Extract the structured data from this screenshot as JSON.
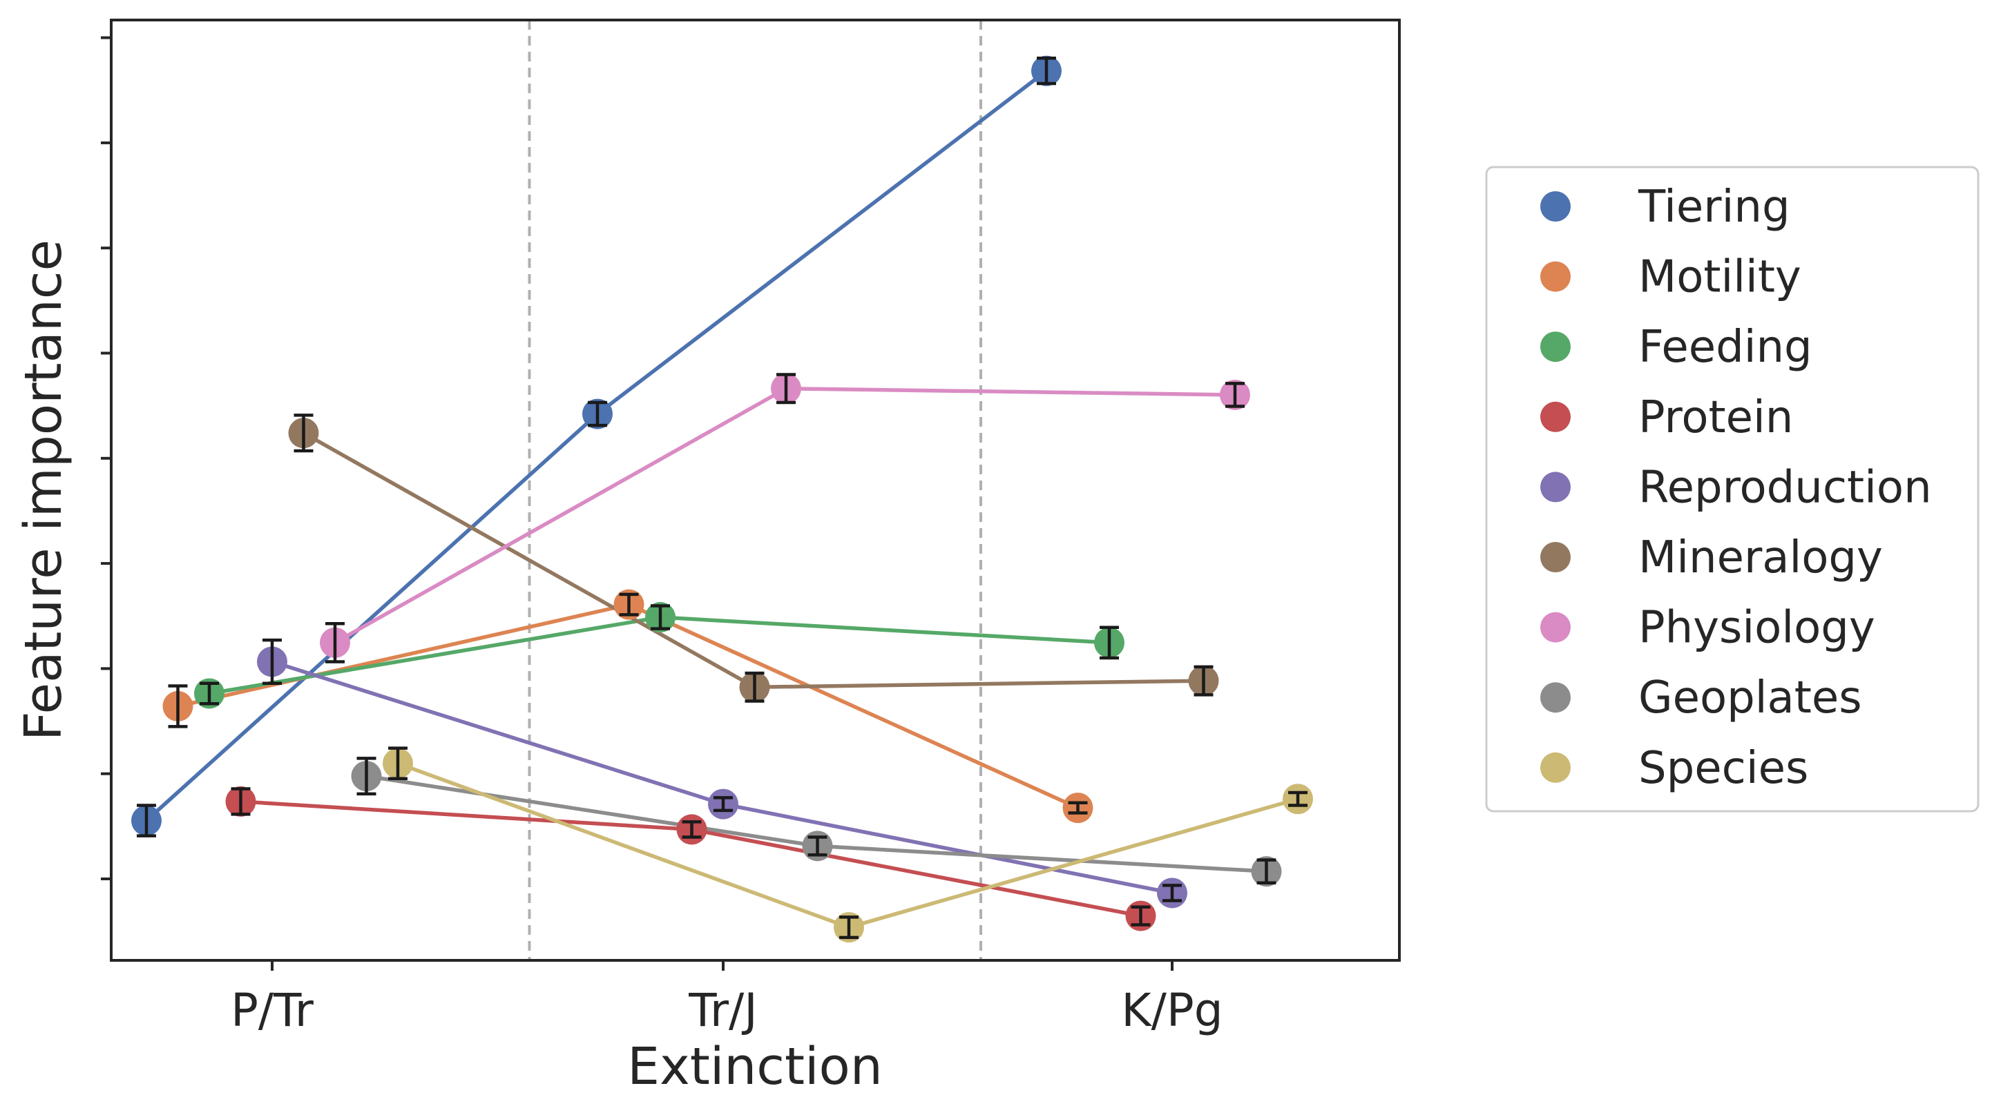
{
  "chart_data": {
    "type": "scatter",
    "xlabel": "Extinction",
    "ylabel": "Feature importance",
    "categories": [
      "P/Tr",
      "Tr/J",
      "K/Pg"
    ],
    "y_tick_count": 9,
    "y_tick_labels": "none",
    "grid": false,
    "legend_position": "outside-right",
    "vertical_separators": true,
    "series": [
      {
        "name": "Tiering",
        "color": "#4c72b0",
        "values": [
          0.17,
          0.49,
          0.76
        ],
        "errors": [
          0.012,
          0.009,
          0.01
        ]
      },
      {
        "name": "Motility",
        "color": "#dd8452",
        "values": [
          0.26,
          0.34,
          0.18
        ],
        "errors": [
          0.016,
          0.008,
          0.004
        ]
      },
      {
        "name": "Feeding",
        "color": "#55a868",
        "values": [
          0.27,
          0.33,
          0.31
        ],
        "errors": [
          0.008,
          0.009,
          0.012
        ]
      },
      {
        "name": "Protein",
        "color": "#c44e52",
        "values": [
          0.185,
          0.163,
          0.095
        ],
        "errors": [
          0.01,
          0.006,
          0.007
        ]
      },
      {
        "name": "Reproduction",
        "color": "#8172b3",
        "values": [
          0.295,
          0.183,
          0.113
        ],
        "errors": [
          0.017,
          0.005,
          0.006
        ]
      },
      {
        "name": "Mineralogy",
        "color": "#937860",
        "values": [
          0.475,
          0.275,
          0.28
        ],
        "errors": [
          0.014,
          0.011,
          0.011
        ]
      },
      {
        "name": "Physiology",
        "color": "#da8bc3",
        "values": [
          0.31,
          0.51,
          0.505
        ],
        "errors": [
          0.015,
          0.011,
          0.009
        ]
      },
      {
        "name": "Geoplates",
        "color": "#8c8c8c",
        "values": [
          0.205,
          0.15,
          0.13
        ],
        "errors": [
          0.014,
          0.007,
          0.009
        ]
      },
      {
        "name": "Species",
        "color": "#ccb974",
        "values": [
          0.215,
          0.086,
          0.187
        ],
        "errors": [
          0.012,
          0.008,
          0.005
        ]
      }
    ]
  }
}
